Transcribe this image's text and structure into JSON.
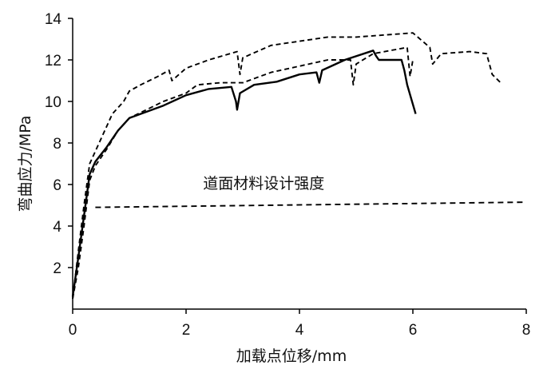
{
  "chart_data": {
    "type": "line",
    "xlabel": "加载点位移/mm",
    "ylabel": "弯曲应力/MPa",
    "xlim": [
      0,
      8
    ],
    "ylim": [
      0,
      14
    ],
    "x_ticks": [
      "0",
      "2",
      "4",
      "6",
      "8"
    ],
    "y_ticks": [
      "2",
      "4",
      "6",
      "8",
      "10",
      "12",
      "14"
    ],
    "grid": false,
    "legend": "none",
    "annotation": {
      "text": "道面材料设计强度",
      "x": 2.3,
      "y": 5.8
    },
    "series": [
      {
        "style": "solid",
        "x": [
          0,
          0.1,
          0.2,
          0.3,
          0.4,
          0.6,
          0.8,
          1.0,
          1.3,
          1.6,
          2.0,
          2.4,
          2.8,
          2.88,
          2.9,
          2.95,
          3.2,
          3.6,
          4.0,
          4.3,
          4.35,
          4.4,
          4.8,
          5.3,
          5.35,
          5.4,
          5.8,
          5.85,
          5.9,
          6.05
        ],
        "y": [
          0.6,
          2.5,
          4.5,
          6.5,
          7.1,
          7.8,
          8.6,
          9.2,
          9.5,
          9.8,
          10.3,
          10.6,
          10.7,
          10.0,
          9.6,
          10.4,
          10.8,
          10.95,
          11.3,
          11.4,
          10.9,
          11.5,
          12.0,
          12.45,
          12.2,
          12.0,
          12.0,
          11.5,
          10.8,
          9.4
        ]
      },
      {
        "style": "dashed",
        "x": [
          0,
          0.1,
          0.2,
          0.3,
          0.4,
          0.6,
          0.8,
          1.0,
          1.3,
          1.6,
          2.0,
          2.2,
          2.6,
          3.0,
          3.5,
          4.0,
          4.5,
          4.9,
          4.95,
          5.0,
          5.3,
          5.7,
          5.9,
          5.95,
          6.0
        ],
        "y": [
          0.5,
          2.0,
          4.0,
          6.2,
          6.9,
          7.7,
          8.6,
          9.2,
          9.6,
          10.0,
          10.4,
          10.8,
          10.9,
          10.9,
          11.4,
          11.7,
          12.0,
          12.0,
          10.8,
          11.8,
          12.3,
          12.5,
          12.6,
          11.2,
          12.0
        ]
      },
      {
        "style": "dashed",
        "x": [
          0,
          0.1,
          0.2,
          0.3,
          0.5,
          0.7,
          0.9,
          1.0,
          1.2,
          1.5,
          1.7,
          1.75,
          2.0,
          2.4,
          2.9,
          2.95,
          3.0,
          3.5,
          4.0,
          4.5,
          5.0,
          5.5,
          6.0,
          6.3,
          6.35,
          6.5,
          7.0,
          7.3,
          7.4,
          7.55
        ],
        "y": [
          0.5,
          2.8,
          5.0,
          7.0,
          8.2,
          9.4,
          10.0,
          10.5,
          10.8,
          11.2,
          11.5,
          11.0,
          11.6,
          12.0,
          12.4,
          11.3,
          12.1,
          12.7,
          12.9,
          13.1,
          13.1,
          13.2,
          13.3,
          12.6,
          11.8,
          12.3,
          12.4,
          12.3,
          11.3,
          10.9
        ]
      },
      {
        "style": "dashed",
        "name": "道面材料设计强度",
        "x": [
          0.4,
          8.0
        ],
        "y": [
          4.9,
          5.15
        ]
      }
    ]
  }
}
